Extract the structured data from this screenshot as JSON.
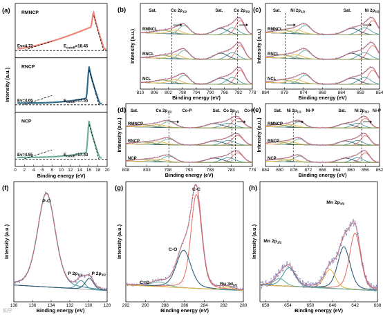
{
  "figure": {
    "watermark": "知乎"
  },
  "chart_data": [
    {
      "id": "a",
      "panel_label": "(a)",
      "type": "line",
      "xlabel": "Binding energy (eV)",
      "ylabel": "Intensity (a.u.)",
      "xlim": [
        0,
        20
      ],
      "xticks": [
        "0",
        "2",
        "4",
        "6",
        "8",
        "10",
        "12",
        "14",
        "16",
        "18",
        "20"
      ],
      "subpanels": [
        {
          "name": "RMNCP",
          "color": "#f08577",
          "peak_x": 17.0,
          "ev": "Ev=4.72",
          "cutoff_prefix": "E",
          "cutoff_sub": "cutoff",
          "cutoff_value": "=18.45"
        },
        {
          "name": "RNCP",
          "color": "#2e6b88",
          "peak_x": 16.0,
          "ev": "Ev=4.65",
          "cutoff_prefix": "E",
          "cutoff_sub": "cutoff",
          "cutoff_value": "=17.55"
        },
        {
          "name": "NCP",
          "color": "#6fae9d",
          "peak_x": 16.0,
          "ev": "Ev=4.55",
          "cutoff_prefix": "E",
          "cutoff_sub": "cutoff",
          "cutoff_value": "=17.43"
        }
      ]
    },
    {
      "id": "b",
      "panel_label": "(b)",
      "type": "line",
      "xlabel": "Binding energy (eV)",
      "ylabel": "Intensity (a.u.)",
      "xlim": [
        810,
        778
      ],
      "xticks": [
        "810",
        "806",
        "802",
        "798",
        "794",
        "790",
        "786",
        "782",
        "778"
      ],
      "samples": [
        "RMNCL",
        "RNCL",
        "NCL"
      ],
      "annotations": [
        {
          "text": "Sat.",
          "x": 806.5
        },
        {
          "text": "Co 2p",
          "sub": "1/2",
          "x": 799
        },
        {
          "text": "Sat.",
          "x": 787.5
        },
        {
          "text": "Co 2p",
          "sub": "3/2",
          "x": 781
        }
      ],
      "peaks": [
        797.5,
        781.5
      ],
      "vlines": [
        801.0,
        782.2
      ]
    },
    {
      "id": "c",
      "panel_label": "(c)",
      "type": "line",
      "xlabel": "Binding energy (eV)",
      "ylabel": "Intensity (a.u.)",
      "xlim": [
        884,
        854
      ],
      "xticks": [
        "884",
        "879",
        "874",
        "869",
        "864",
        "859",
        "854"
      ],
      "samples": [
        "RMNCL",
        "RNCL",
        "NCL"
      ],
      "annotations": [
        {
          "text": "Sat.",
          "x": 881
        },
        {
          "text": "Ni 2p",
          "sub": "1/2",
          "x": 875.5
        },
        {
          "text": "Sat.",
          "x": 862.5
        },
        {
          "text": "Ni 2p",
          "sub": "3/2",
          "x": 856
        }
      ],
      "peaks": [
        873.5,
        855.8
      ],
      "vlines": [
        878.8,
        858.8
      ]
    },
    {
      "id": "d",
      "panel_label": "(d)",
      "type": "line",
      "xlabel": "Binding energy (eV)",
      "ylabel": "Intensity (a.u.)",
      "xlim": [
        808,
        778
      ],
      "xticks": [
        "808",
        "803",
        "798",
        "793",
        "788",
        "783",
        "778"
      ],
      "samples": [
        "RMNCP",
        "RNCP",
        "NCP"
      ],
      "annotations": [
        {
          "text": "Sat.",
          "x": 806
        },
        {
          "text": "Co 2p",
          "sub": "1/2",
          "x": 799
        },
        {
          "text": "Co-P",
          "x": 793.5
        },
        {
          "text": "Sat.",
          "x": 786.5
        },
        {
          "text": "Co 2p",
          "sub": "3/2",
          "x": 783
        },
        {
          "text": "Co-P",
          "x": 778.8
        }
      ],
      "peaks": [
        797.8,
        781.5
      ],
      "vlines": [
        797.8,
        782.8,
        782.0
      ]
    },
    {
      "id": "e",
      "panel_label": "(e)",
      "type": "line",
      "xlabel": "Binding energy (eV)",
      "ylabel": "Intensity (a.u.)",
      "xlim": [
        884,
        852
      ],
      "xticks": [
        "884",
        "880",
        "876",
        "872",
        "868",
        "864",
        "860",
        "856",
        "852"
      ],
      "samples": [
        "RMNCP",
        "RNCP",
        "NCP"
      ],
      "annotations": [
        {
          "text": "Sat.",
          "x": 880.5
        },
        {
          "text": "Ni 2p",
          "sub": "1/2",
          "x": 876
        },
        {
          "text": "Ni-P",
          "x": 871.5
        },
        {
          "text": "Sat.",
          "x": 862.5
        },
        {
          "text": "Ni 2p",
          "sub": "3/2",
          "x": 857
        },
        {
          "text": "Ni-P",
          "x": 852.8
        }
      ],
      "peaks": [
        874.5,
        856.0
      ],
      "vlines": [
        876.2,
        857.0
      ]
    },
    {
      "id": "f",
      "panel_label": "(f)",
      "type": "line",
      "xlabel": "Binding energy (eV)",
      "ylabel": "Intensity (a.u.)",
      "xlim": [
        138,
        128
      ],
      "xticks": [
        "138",
        "136",
        "134",
        "132",
        "130",
        "128"
      ],
      "annotations": [
        {
          "text": "P-O",
          "x": 134.5
        },
        {
          "text": "P 2p",
          "sub": "1/2",
          "x": 131
        },
        {
          "text": "P 2p",
          "sub": "3/2",
          "x": 129.5
        }
      ],
      "peaks": [
        {
          "center": 134.5,
          "height": 1.0,
          "width": 0.95
        },
        {
          "center": 130.8,
          "height": 0.09,
          "width": 0.45
        },
        {
          "center": 129.9,
          "height": 0.12,
          "width": 0.45
        }
      ]
    },
    {
      "id": "g",
      "panel_label": "(g)",
      "type": "line",
      "xlabel": "Binding energy (eV)",
      "ylabel": "Intensity (a.u.)",
      "xlim": [
        292,
        280
      ],
      "xticks": [
        "292",
        "290",
        "288",
        "286",
        "284",
        "282",
        "280"
      ],
      "annotations": [
        {
          "text": "C-C",
          "x": 284.8
        },
        {
          "text": "C-O",
          "x": 287.2
        },
        {
          "text": "C=O",
          "x": 289.8
        },
        {
          "text": "Ru 3d",
          "sub": "5/2",
          "x": 281.5
        }
      ],
      "peaks": [
        {
          "center": 284.8,
          "height": 1.0,
          "width": 0.55
        },
        {
          "center": 286.1,
          "height": 0.4,
          "width": 0.75
        },
        {
          "center": 288.6,
          "height": 0.05,
          "width": 0.8
        },
        {
          "center": 281.6,
          "height": 0.03,
          "width": 0.55
        }
      ]
    },
    {
      "id": "h",
      "panel_label": "(h)",
      "type": "line",
      "xlabel": "Binding energy (eV)",
      "ylabel": "Intensity (a.u.)",
      "xlim": [
        659,
        638
      ],
      "xticks": [
        "658",
        "654",
        "650",
        "646",
        "642",
        "638"
      ],
      "annotations": [
        {
          "text": "Mn 2p",
          "sub": "3/2",
          "x": 645.5
        },
        {
          "text": "Mn 2p",
          "sub": "1/2",
          "x": 656
        }
      ],
      "peaks": [
        {
          "center": 642.0,
          "height": 0.6,
          "width": 1.0
        },
        {
          "center": 644.0,
          "height": 0.45,
          "width": 1.1
        },
        {
          "center": 646.5,
          "height": 0.2,
          "width": 1.0
        },
        {
          "center": 653.8,
          "height": 0.2,
          "width": 1.1
        },
        {
          "center": 655.5,
          "height": 0.08,
          "width": 1.0
        }
      ]
    }
  ]
}
